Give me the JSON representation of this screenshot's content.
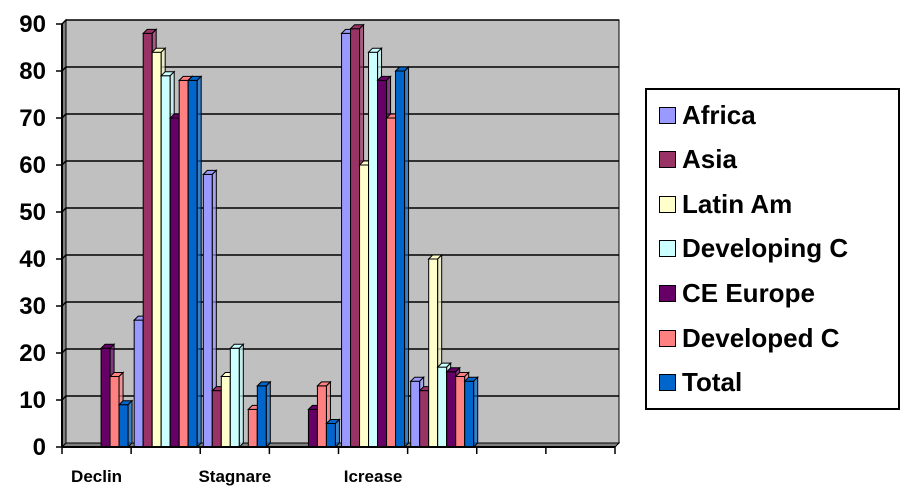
{
  "chart_data": {
    "type": "bar",
    "title": "",
    "xlabel": "",
    "ylabel": "",
    "ylim": [
      0,
      90
    ],
    "yticks": [
      0,
      10,
      20,
      30,
      40,
      50,
      60,
      70,
      80,
      90
    ],
    "grid": true,
    "legend_position": "right",
    "categories": [
      "Declin",
      "",
      "Stagnare",
      "",
      "Icrease",
      "",
      "",
      ""
    ],
    "series": [
      {
        "name": "Africa",
        "color": "#9999ff",
        "values": [
          0,
          27,
          58,
          0,
          88,
          14,
          0,
          0
        ]
      },
      {
        "name": "Asia",
        "color": "#993366",
        "values": [
          0,
          88,
          12,
          0,
          89,
          12,
          0,
          0
        ]
      },
      {
        "name": "Latin Am",
        "color": "#ffffcc",
        "values": [
          0,
          84,
          15,
          0,
          60,
          40,
          0,
          0
        ]
      },
      {
        "name": "Developing C",
        "color": "#ccffff",
        "values": [
          0,
          79,
          21,
          0,
          84,
          17,
          0,
          0
        ]
      },
      {
        "name": "CE Europe",
        "color": "#660066",
        "values": [
          21,
          70,
          0,
          8,
          78,
          16,
          0,
          0
        ]
      },
      {
        "name": "Developed C",
        "color": "#ff8080",
        "values": [
          15,
          78,
          8,
          13,
          70,
          15,
          0,
          0
        ]
      },
      {
        "name": "Total",
        "color": "#0066cc",
        "values": [
          9,
          78,
          13,
          5,
          80,
          14,
          0,
          0
        ]
      }
    ]
  }
}
